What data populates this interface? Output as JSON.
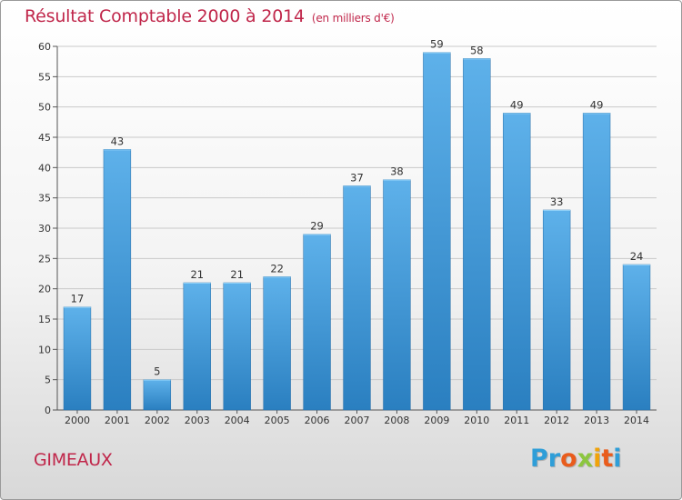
{
  "header": {
    "title": "Résultat Comptable 2000 à 2014",
    "unit": "(en milliers d'€)"
  },
  "footer": {
    "commune": "GIMEAUX",
    "logo_letters": [
      "P",
      "r",
      "o",
      "x",
      "i",
      "t",
      "i"
    ]
  },
  "colors": {
    "title": "#c0264a",
    "bar_top": "#5eb1ea",
    "bar_bottom": "#2a7fc0",
    "grid": "#c9c9c9"
  },
  "chart_data": {
    "type": "bar",
    "title": "Résultat Comptable 2000 à 2014",
    "subtitle": "(en milliers d'€)",
    "xlabel": "",
    "ylabel": "",
    "categories": [
      "2000",
      "2001",
      "2002",
      "2003",
      "2004",
      "2005",
      "2006",
      "2007",
      "2008",
      "2009",
      "2010",
      "2011",
      "2012",
      "2013",
      "2014"
    ],
    "values": [
      17,
      43,
      5,
      21,
      21,
      22,
      29,
      37,
      38,
      59,
      58,
      49,
      33,
      49,
      24
    ],
    "ylim": [
      0,
      60
    ],
    "yticks": [
      0,
      5,
      10,
      15,
      20,
      25,
      30,
      35,
      40,
      45,
      50,
      55,
      60
    ],
    "grid": true,
    "data_labels": true
  }
}
